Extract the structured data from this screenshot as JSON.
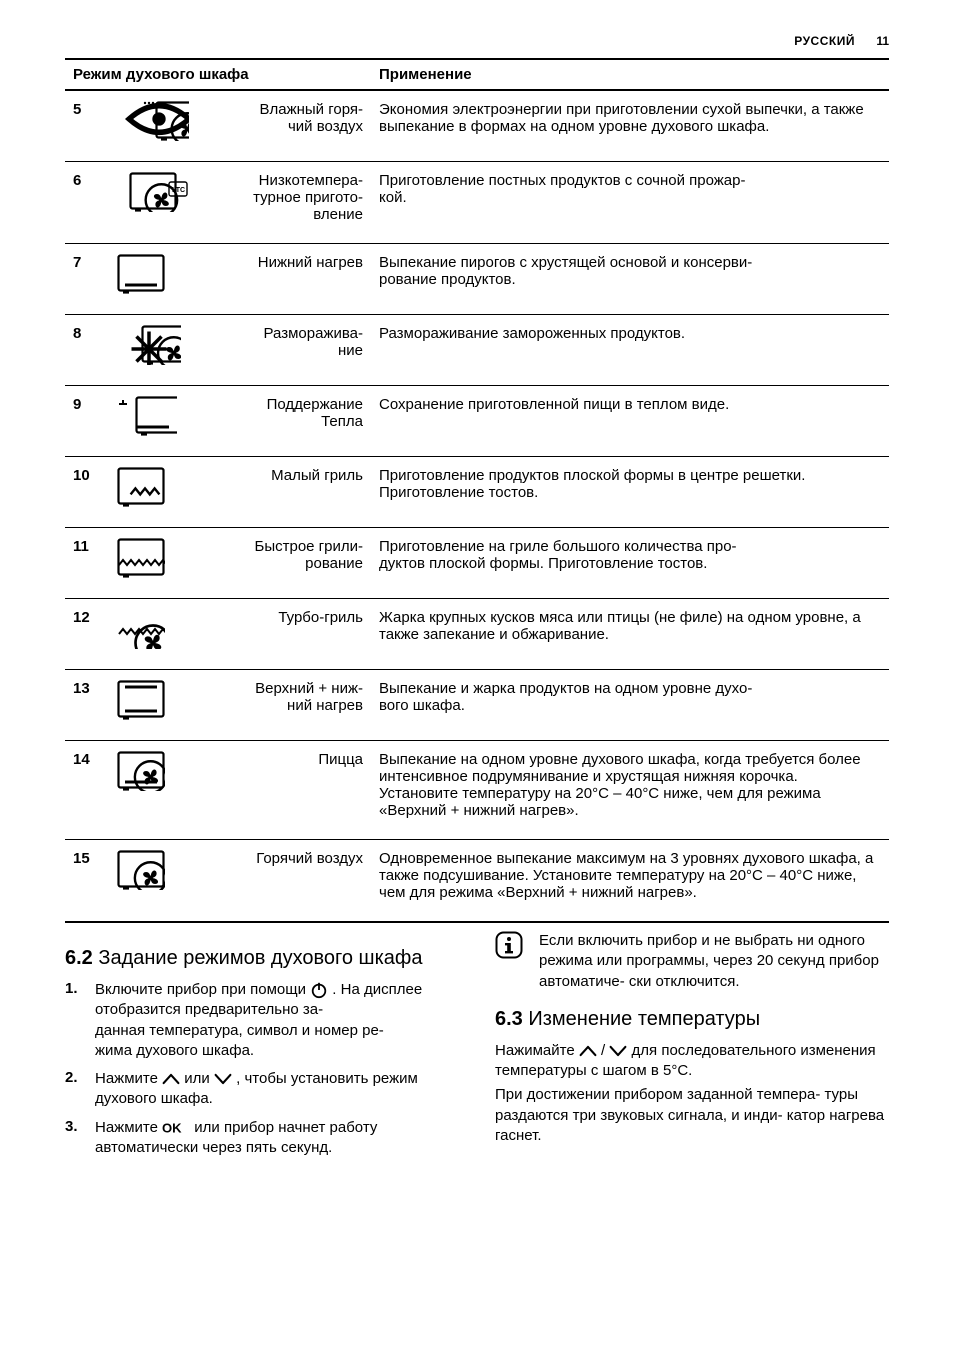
{
  "header": {
    "language": "РУССКИЙ",
    "page_number": "11"
  },
  "table": {
    "col_mode": "Режим духового шкафа",
    "col_use": "Применение",
    "rows": [
      {
        "n": "5",
        "icon": "moist-hot-air",
        "name": "Влажный горя-\nчий воздух",
        "desc": "Экономия электроэнергии при приготовлении сухой выпечки, а также выпекание в формах на одном уровне духового шкафа."
      },
      {
        "n": "6",
        "icon": "low-temp-cooking",
        "name": "Низкотемпера-\nтурное пригото-\nвление",
        "desc": "Приготовление постных продуктов с сочной прожар-\nкой."
      },
      {
        "n": "7",
        "icon": "bottom-heat",
        "name": "Нижний нагрев",
        "desc": "Выпекание пирогов с хрустящей основой и консерви-\nрование продуктов."
      },
      {
        "n": "8",
        "icon": "defrost",
        "name": "Разморажива-\nние",
        "desc": "Размораживание замороженных продуктов."
      },
      {
        "n": "9",
        "icon": "keep-warm",
        "name": "Поддержание\nТепла",
        "desc": "Сохранение приготовленной пищи в теплом виде."
      },
      {
        "n": "10",
        "icon": "small-grill",
        "name": "Малый гриль",
        "desc": "Приготовление продуктов плоской формы в центре решетки. Приготовление тостов."
      },
      {
        "n": "11",
        "icon": "fast-grill",
        "name": "Быстрое грили-\nрование",
        "desc": "Приготовление на гриле большого количества про-\nдуктов плоской формы. Приготовление тостов."
      },
      {
        "n": "12",
        "icon": "turbo-grill",
        "name": "Турбо-гриль",
        "desc": "Жарка крупных кусков мяса или птицы (не филе) на одном уровне, а также запекание и обжаривание."
      },
      {
        "n": "13",
        "icon": "top-bottom-heat",
        "name": "Верхний + ниж-\nний нагрев",
        "desc": "Выпекание и жарка продуктов на одном уровне духо-\nвого шкафа."
      },
      {
        "n": "14",
        "icon": "pizza",
        "name": "Пицца",
        "desc": "Выпекание на одном уровне духового шкафа, когда требуется более интенсивное подрумянивание и хрустящая нижняя корочка. Установите температуру на 20°C – 40°C ниже, чем для режима «Верхний + нижний нагрев»."
      },
      {
        "n": "15",
        "icon": "hot-air",
        "name": "Горячий воздух",
        "desc": "Одновременное выпекание максимум на 3 уровнях духового шкафа, а также подсушивание. Установите температуру на 20°C – 40°C ниже, чем для режима «Верхний + нижний нагрев»."
      }
    ]
  },
  "section_6_2": {
    "num": "6.2",
    "title": "Задание режимов духового шкафа",
    "steps": [
      {
        "n": "1.",
        "pre": "Включите прибор при помощи ",
        "icon": "power",
        "post": " . На дисплее отобразится предварительно за-\nданная температура, символ и номер ре-\nжима духового шкафа."
      },
      {
        "n": "2.",
        "pre": "Нажмите ",
        "icon": "up",
        "mid": " или ",
        "icon2": "down",
        "post": " , чтобы установить режим духового шкафа."
      },
      {
        "n": "3.",
        "pre": "Нажмите ",
        "icon": "ok",
        "post": " или прибор начнет работу автоматически через пять секунд."
      }
    ]
  },
  "info_note": "Если включить прибор и не выбрать ни одного режима или программы, через 20 секунд прибор автоматиче-\nски отключится.",
  "section_6_3": {
    "num": "6.3",
    "title": "Изменение температуры",
    "p1_pre": "Нажимайте ",
    "p1_mid": " / ",
    "p1_post": " для последовательного изменения температуры с шагом в 5°C.",
    "p2": "При достижении прибором заданной темпера-\nтуры раздаются три звуковых сигнала, и инди-\nкатор нагрева гаснет."
  }
}
